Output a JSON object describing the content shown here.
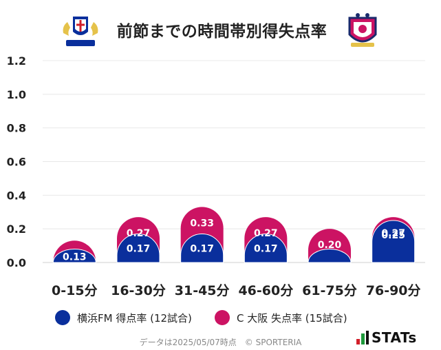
{
  "title": "前節までの時間帯別得失点率",
  "legend": [
    {
      "label": "横浜FM 得点率 (12試合)",
      "color": "#0a2f9c"
    },
    {
      "label": "C 大阪 失点率 (15試合)",
      "color": "#cc1363"
    }
  ],
  "footer": "データは2025/05/07時点　© SPORTERIA",
  "brand": "STATs",
  "chart_data": {
    "type": "bar",
    "categories": [
      "0-15分",
      "16-30分",
      "31-45分",
      "46-60分",
      "61-75分",
      "76-90分"
    ],
    "series": [
      {
        "name": "横浜FM 得点率 (12試合)",
        "values": [
          0.08,
          0.17,
          0.17,
          0.17,
          0.08,
          0.25
        ],
        "labels": [
          "",
          "0.17",
          "0.17",
          "0.17",
          "",
          "0.25"
        ],
        "color": "#0a2f9c"
      },
      {
        "name": "C 大阪 失点率 (15試合)",
        "values": [
          0.13,
          0.27,
          0.33,
          0.27,
          0.2,
          0.27
        ],
        "labels": [
          "0.13",
          "0.27",
          "0.33",
          "0.27",
          "0.20",
          "0.27"
        ],
        "color": "#cc1363"
      }
    ],
    "yticks": [
      "0.0",
      "0.2",
      "0.4",
      "0.6",
      "0.8",
      "1.0",
      "1.2"
    ],
    "ylim": [
      0,
      1.2
    ],
    "grid": true,
    "legend_position": "bottom"
  }
}
